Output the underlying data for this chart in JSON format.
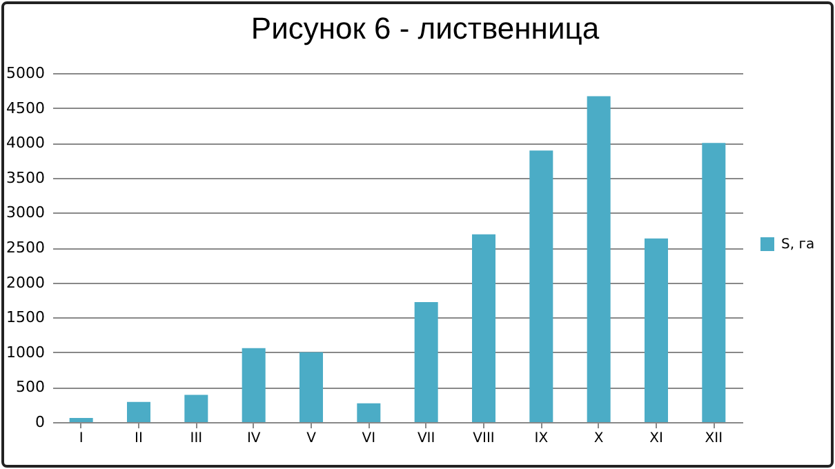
{
  "chart_data": {
    "type": "bar",
    "title": "Рисунок 6 - лиственница",
    "categories": [
      "I",
      "II",
      "III",
      "IV",
      "V",
      "VI",
      "VII",
      "VIII",
      "IX",
      "X",
      "XI",
      "XII"
    ],
    "series": [
      {
        "name": "S, га",
        "color": "#4bacc6",
        "values": [
          60,
          290,
          390,
          1060,
          1000,
          270,
          1720,
          2690,
          3890,
          4670,
          2630,
          4000
        ]
      }
    ],
    "ylim": [
      0,
      5000
    ],
    "yticks": [
      0,
      500,
      1000,
      1500,
      2000,
      2500,
      3000,
      3500,
      4000,
      4500,
      5000
    ],
    "grid": "y",
    "legend": "right"
  }
}
